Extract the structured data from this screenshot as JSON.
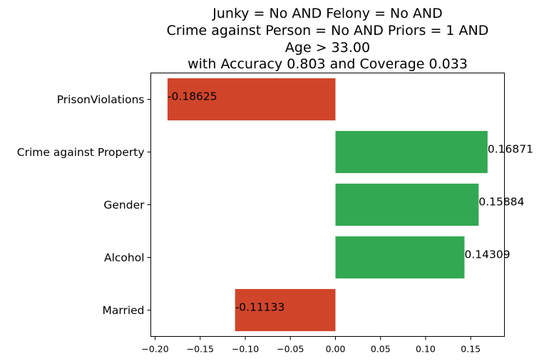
{
  "chart_data": {
    "type": "bar",
    "orientation": "horizontal",
    "title": [
      "Junky = No AND Felony = No AND",
      "Crime against Person = No AND Priors = 1 AND",
      "Age > 33.00",
      "with Accuracy 0.803 and Coverage 0.033"
    ],
    "categories": [
      "PrisonViolations",
      "Crime against Property",
      "Gender",
      "Alcohol",
      "Married"
    ],
    "values": [
      -0.18625,
      0.16871,
      0.15884,
      0.14309,
      -0.11133
    ],
    "value_labels": [
      "-0.18625",
      "0.16871",
      "0.15884",
      "0.14309",
      "-0.11133"
    ],
    "xticks": [
      -0.2,
      -0.15,
      -0.1,
      -0.05,
      0.0,
      0.05,
      0.1,
      0.15
    ],
    "xtick_labels": [
      "−0.20",
      "−0.15",
      "−0.10",
      "−0.05",
      "0.00",
      "0.05",
      "0.10",
      "0.15"
    ],
    "xlim": [
      -0.2048,
      0.1874
    ],
    "xlabel": "",
    "ylabel": "",
    "grid": false,
    "legend": "none",
    "colors": {
      "positive": "#33a853",
      "negative": "#d0452a",
      "axis": "#000000",
      "background": "#ffffff"
    }
  }
}
